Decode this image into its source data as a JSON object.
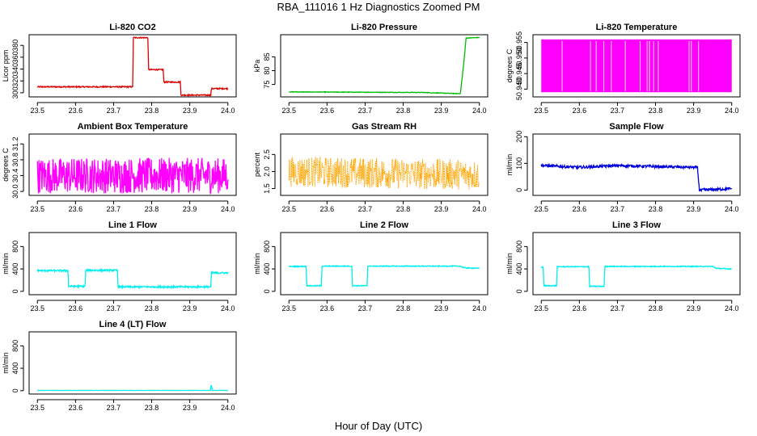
{
  "figure": {
    "title": "RBA_111016  1 Hz Diagnostics Zoomed PM",
    "xlabel": "Hour of Day (UTC)"
  },
  "chart_data": [
    {
      "type": "line",
      "title": "Li-820 CO2",
      "ylabel": "Licor ppm",
      "xlim": [
        23.5,
        24.0
      ],
      "ylim": [
        293,
        398
      ],
      "x_ticks": [
        "23.5",
        "23.6",
        "23.7",
        "23.8",
        "23.9",
        "24.0"
      ],
      "y_ticks": [
        "300",
        "320",
        "340",
        "360",
        "380"
      ],
      "color": "#dd0000",
      "series": [
        {
          "x": [
            23.5,
            23.75,
            23.752,
            23.79,
            23.792,
            23.83,
            23.832,
            23.875,
            23.877,
            23.955,
            23.957,
            24.0
          ],
          "values": [
            310,
            310,
            393,
            393,
            339,
            339,
            318,
            318,
            296,
            296,
            307,
            307
          ],
          "noise": 1
        }
      ]
    },
    {
      "type": "line",
      "title": "Li-820 Pressure",
      "ylabel": "kPa",
      "xlim": [
        23.5,
        24.0
      ],
      "ylim": [
        70.5,
        93
      ],
      "x_ticks": [
        "23.5",
        "23.6",
        "23.7",
        "23.8",
        "23.9",
        "24.0"
      ],
      "y_ticks": [
        "75",
        "80",
        "85"
      ],
      "color": "#00bb00",
      "series": [
        {
          "x": [
            23.5,
            23.85,
            23.94,
            23.95,
            23.96,
            23.965,
            24.0
          ],
          "values": [
            72.3,
            72.1,
            71.7,
            71.7,
            84,
            91.8,
            92
          ],
          "noise": 0.1
        }
      ]
    },
    {
      "type": "line",
      "title": "Li-820 Temperature",
      "ylabel": "degrees C",
      "xlim": [
        23.5,
        24.0
      ],
      "ylim": [
        50.9375,
        50.9575
      ],
      "x_ticks": [
        "23.5",
        "23.6",
        "23.7",
        "23.8",
        "23.9",
        "24.0"
      ],
      "y_ticks": [
        "50.940",
        "50.945",
        "50.950",
        "50.955"
      ],
      "color": "#ff00ff",
      "series": [
        {
          "x": [
            23.5,
            24.0
          ],
          "values": [
            50.939,
            50.956
          ],
          "pattern": "dense-band"
        }
      ]
    },
    {
      "type": "line",
      "title": "Ambient Box Temperature",
      "ylabel": "degrees C",
      "xlim": [
        23.5,
        24.0
      ],
      "ylim": [
        29.9,
        31.45
      ],
      "x_ticks": [
        "23.5",
        "23.6",
        "23.7",
        "23.8",
        "23.9",
        "24.0"
      ],
      "y_ticks": [
        "30.0",
        "30.4",
        "30.8",
        "31.2"
      ],
      "color": "#ff00ff",
      "series": [
        {
          "x": [
            23.5,
            24.0
          ],
          "values": [
            30.4,
            30.4
          ],
          "noise": 0.45
        }
      ]
    },
    {
      "type": "scatter",
      "title": "Gas Stream RH",
      "ylabel": "percent",
      "xlim": [
        23.5,
        24.0
      ],
      "ylim": [
        1.3,
        3.1
      ],
      "x_ticks": [
        "23.5",
        "23.6",
        "23.7",
        "23.8",
        "23.9",
        "24.0"
      ],
      "y_ticks": [
        "1.5",
        "2.0",
        "2.5"
      ],
      "color": "#ffa500",
      "series": [
        {
          "x": [
            23.5,
            24.0
          ],
          "values": [
            2.0,
            1.9
          ],
          "noise": 0.45
        }
      ]
    },
    {
      "type": "line",
      "title": "Sample Flow",
      "ylabel": "ml/min",
      "xlim": [
        23.5,
        24.0
      ],
      "ylim": [
        -20,
        210
      ],
      "x_ticks": [
        "23.5",
        "23.6",
        "23.7",
        "23.8",
        "23.9",
        "24.0"
      ],
      "y_ticks": [
        "0",
        "100",
        "200"
      ],
      "color": "#0000dd",
      "series": [
        {
          "x": [
            23.5,
            23.6,
            23.7,
            23.8,
            23.91,
            23.915,
            24.0
          ],
          "values": [
            92,
            85,
            92,
            88,
            85,
            0,
            5
          ],
          "noise": 5
        }
      ]
    },
    {
      "type": "line",
      "title": "Line 1 Flow",
      "ylabel": "ml/min",
      "xlim": [
        23.5,
        24.0
      ],
      "ylim": [
        -60,
        1050
      ],
      "x_ticks": [
        "23.5",
        "23.6",
        "23.7",
        "23.8",
        "23.9",
        "24.0"
      ],
      "y_ticks": [
        "0",
        "400",
        "800"
      ],
      "color": "#00eeee",
      "series": [
        {
          "x": [
            23.5,
            23.58,
            23.582,
            23.625,
            23.627,
            23.71,
            23.712,
            23.955,
            23.957,
            24.0
          ],
          "values": [
            370,
            370,
            90,
            90,
            375,
            375,
            80,
            80,
            330,
            330
          ],
          "noise": 15
        }
      ]
    },
    {
      "type": "line",
      "title": "Line 2 Flow",
      "ylabel": "ml/min",
      "xlim": [
        23.5,
        24.0
      ],
      "ylim": [
        -60,
        1050
      ],
      "x_ticks": [
        "23.5",
        "23.6",
        "23.7",
        "23.8",
        "23.9",
        "24.0"
      ],
      "y_ticks": [
        "0",
        "400",
        "800"
      ],
      "color": "#00eeee",
      "series": [
        {
          "x": [
            23.5,
            23.545,
            23.547,
            23.585,
            23.587,
            23.665,
            23.667,
            23.705,
            23.707,
            23.95,
            23.96,
            24.0
          ],
          "values": [
            445,
            445,
            100,
            100,
            450,
            450,
            100,
            100,
            450,
            450,
            420,
            410
          ],
          "noise": 8
        }
      ]
    },
    {
      "type": "line",
      "title": "Line 3 Flow",
      "ylabel": "ml/min",
      "xlim": [
        23.5,
        24.0
      ],
      "ylim": [
        -60,
        1050
      ],
      "x_ticks": [
        "23.5",
        "23.6",
        "23.7",
        "23.8",
        "23.9",
        "24.0"
      ],
      "y_ticks": [
        "0",
        "400",
        "800"
      ],
      "color": "#00eeee",
      "series": [
        {
          "x": [
            23.5,
            23.505,
            23.507,
            23.54,
            23.542,
            23.625,
            23.627,
            23.665,
            23.667,
            23.95,
            23.96,
            24.0
          ],
          "values": [
            430,
            430,
            100,
            100,
            440,
            440,
            90,
            90,
            445,
            445,
            410,
            400
          ],
          "noise": 8
        }
      ]
    },
    {
      "type": "line",
      "title": "Line 4 (LT) Flow",
      "ylabel": "ml/min",
      "xlim": [
        23.5,
        24.0
      ],
      "ylim": [
        -60,
        1050
      ],
      "x_ticks": [
        "23.5",
        "23.6",
        "23.7",
        "23.8",
        "23.9",
        "24.0"
      ],
      "y_ticks": [
        "0",
        "400",
        "800"
      ],
      "color": "#00eeee",
      "series": [
        {
          "x": [
            23.5,
            23.954,
            23.956,
            23.957,
            23.959,
            24.0
          ],
          "values": [
            5,
            5,
            90,
            90,
            5,
            5
          ],
          "noise": 2
        }
      ]
    }
  ]
}
